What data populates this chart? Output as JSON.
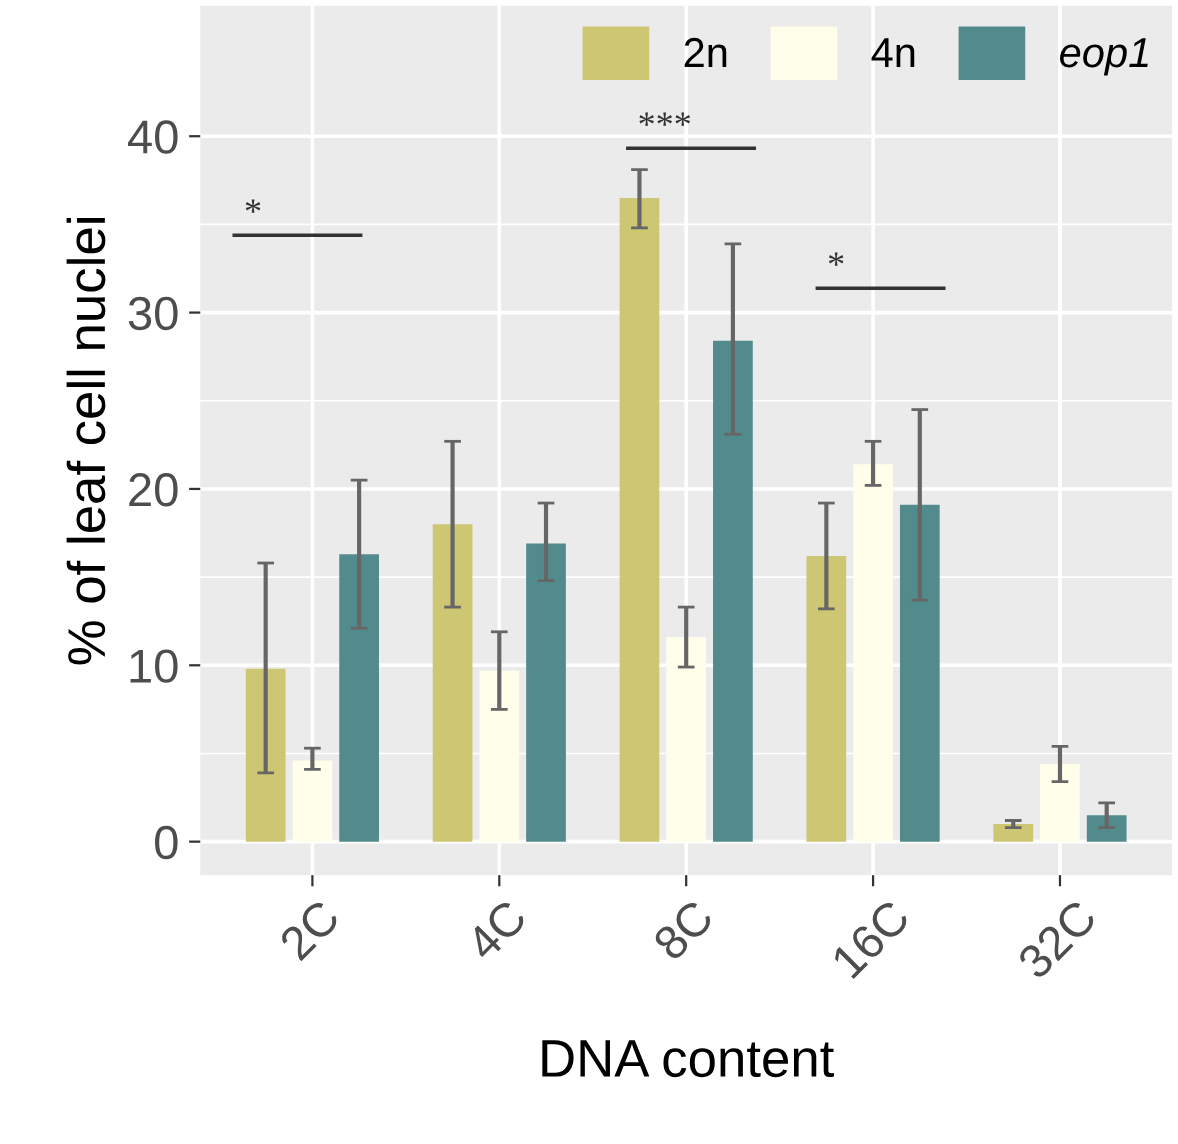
{
  "chart_data": {
    "type": "bar",
    "xlabel": "DNA content",
    "ylabel": "% of leaf cell nuclei",
    "categories": [
      "2C",
      "4C",
      "8C",
      "16C",
      "32C"
    ],
    "series": [
      {
        "name": "2n",
        "color": "#cdc673",
        "values": [
          9.8,
          18.0,
          36.5,
          16.2,
          1.0
        ],
        "errors": [
          [
            3.9,
            15.8
          ],
          [
            13.3,
            22.7
          ],
          [
            34.8,
            38.1
          ],
          [
            13.2,
            19.2
          ],
          [
            0.8,
            1.2
          ]
        ]
      },
      {
        "name": "4n",
        "color": "#fffeea",
        "values": [
          4.6,
          9.7,
          11.6,
          21.4,
          4.4
        ],
        "errors": [
          [
            4.1,
            5.3
          ],
          [
            7.5,
            11.9
          ],
          [
            9.9,
            13.3
          ],
          [
            20.2,
            22.7
          ],
          [
            3.4,
            5.4
          ]
        ]
      },
      {
        "name": "eop1",
        "color": "#528b8b",
        "values": [
          16.3,
          16.9,
          28.4,
          19.1,
          1.5
        ],
        "errors": [
          [
            12.1,
            20.5
          ],
          [
            14.8,
            19.2
          ],
          [
            23.1,
            33.9
          ],
          [
            13.7,
            24.5
          ],
          [
            0.8,
            2.2
          ]
        ]
      }
    ],
    "annotations": [
      "*",
      "***",
      "*"
    ],
    "ylim": [
      -1.9,
      47.4
    ],
    "yticks": [
      0,
      10,
      20,
      30,
      40
    ],
    "grid": true,
    "legend": "top right"
  }
}
